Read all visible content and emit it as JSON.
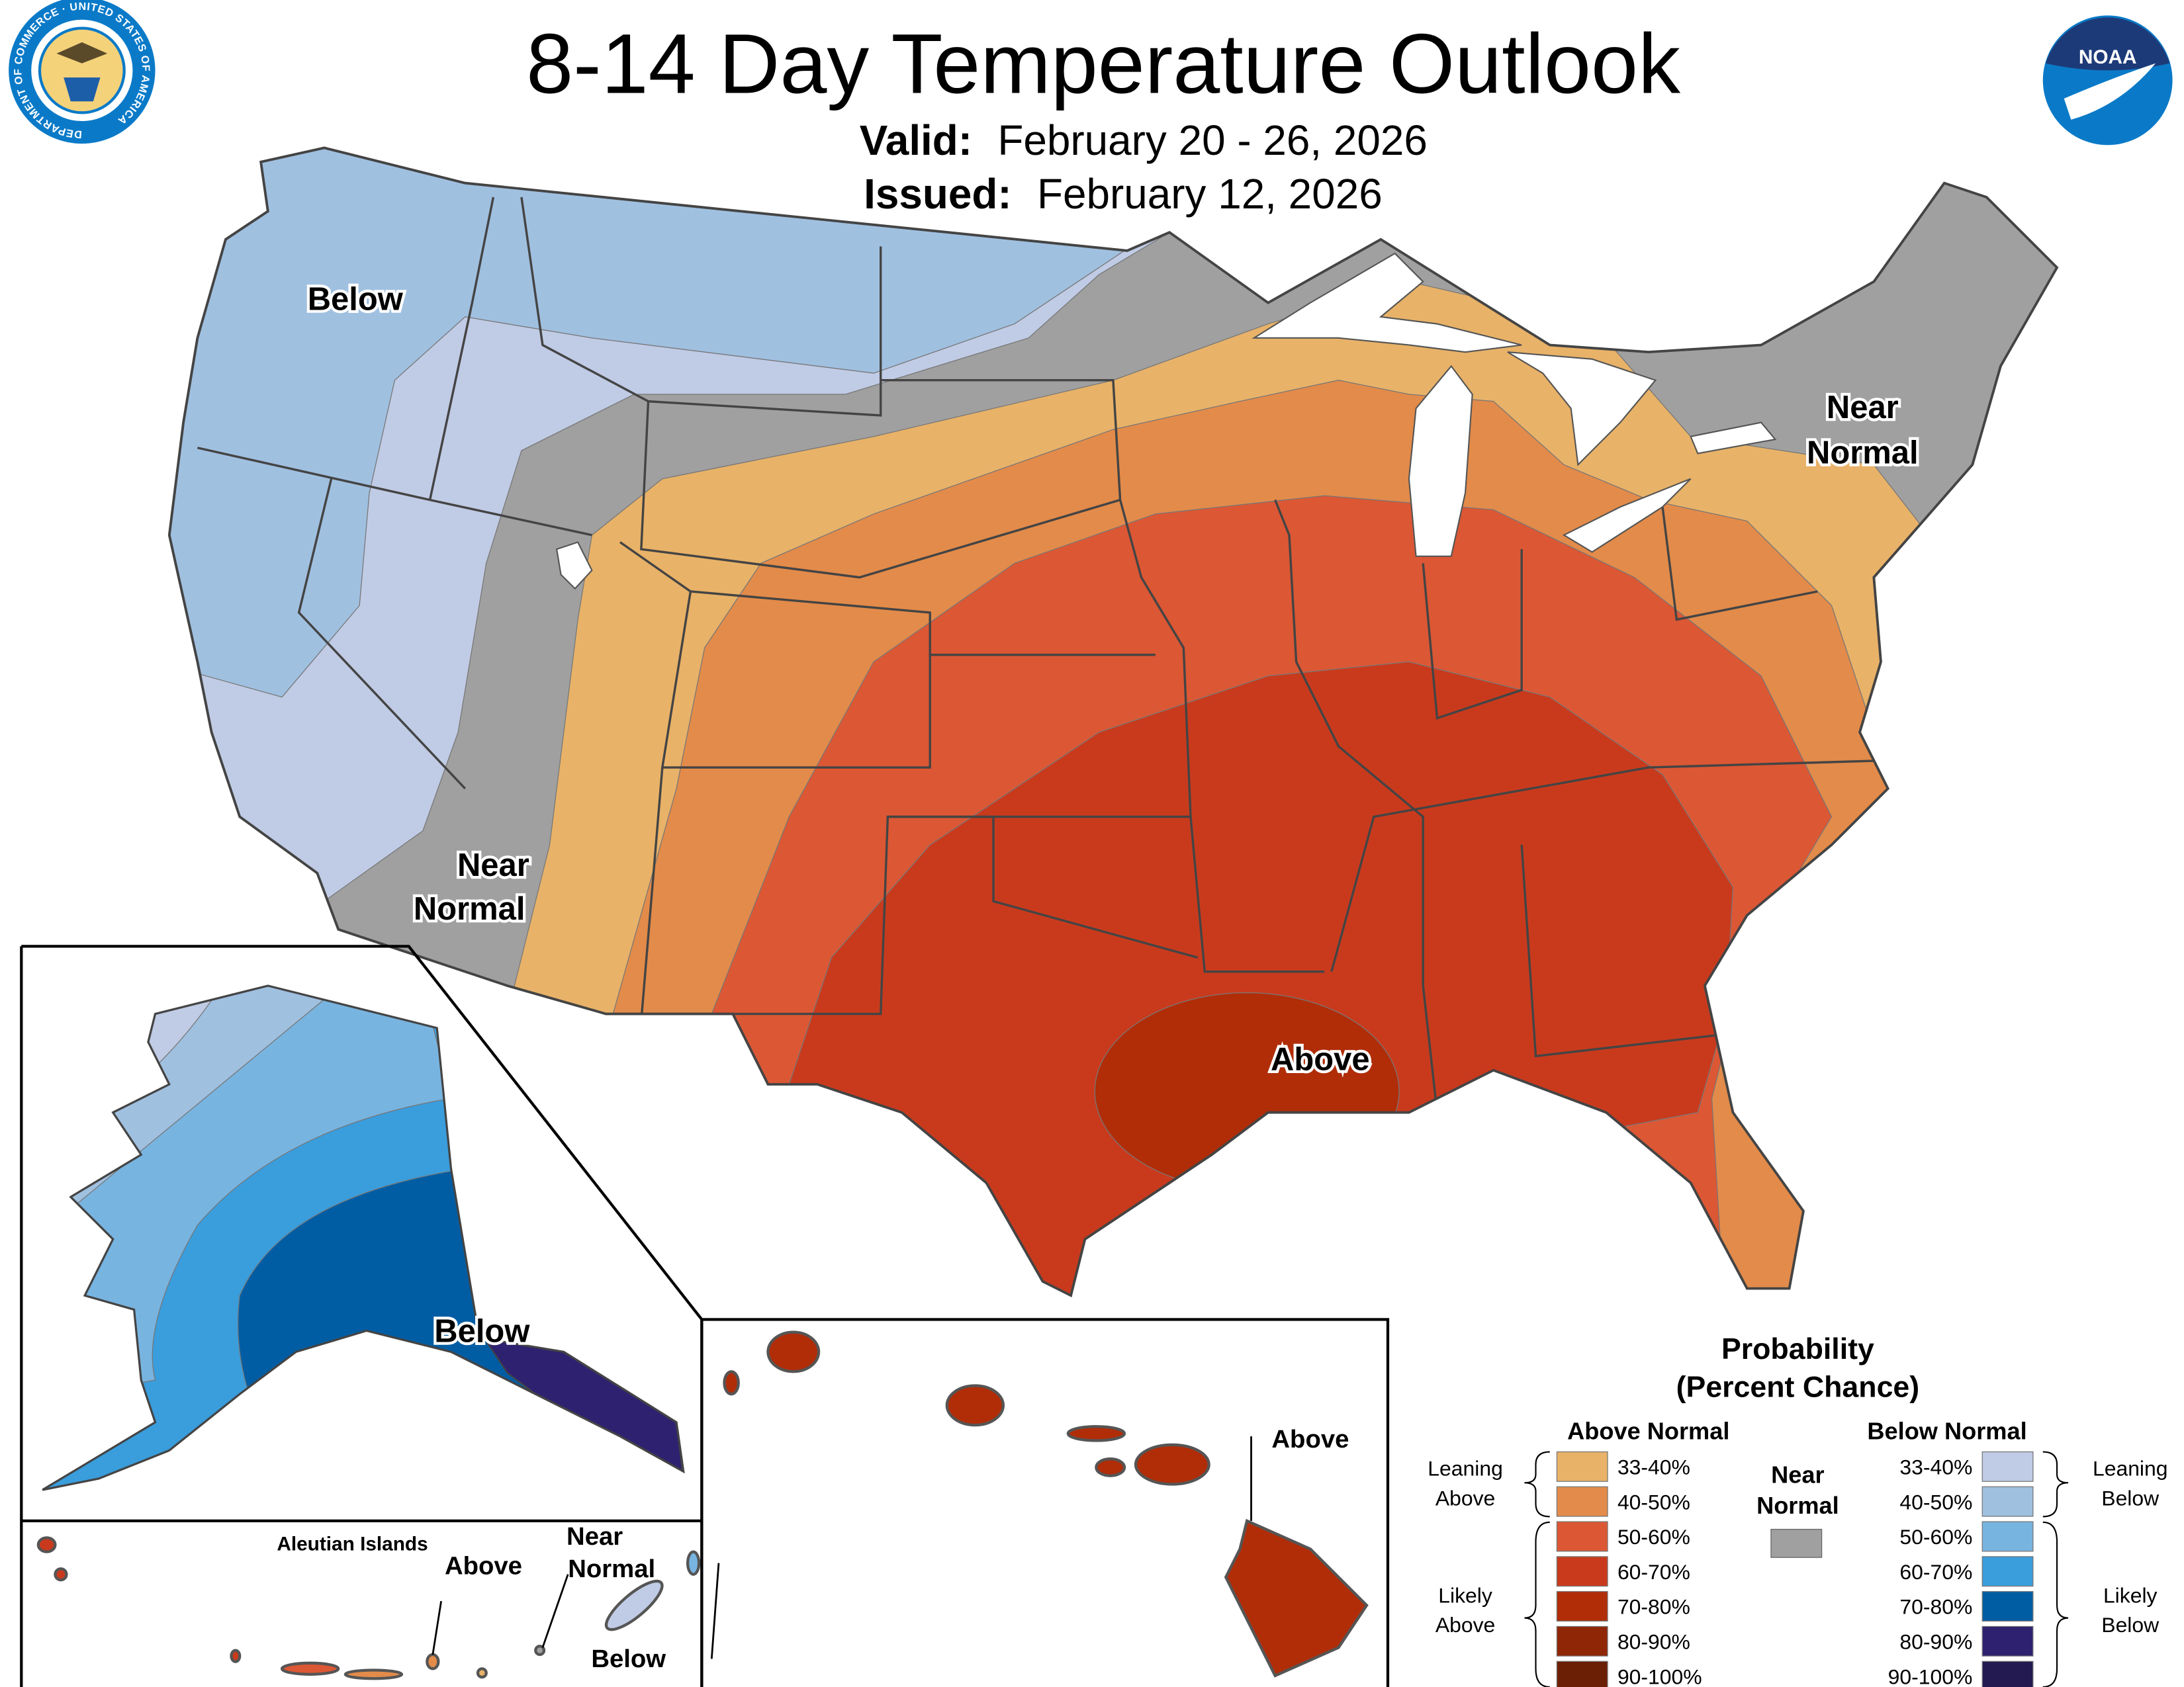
{
  "header": {
    "title": "8-14 Day Temperature Outlook",
    "valid_label": "Valid:",
    "valid_value": "February 20 - 26, 2026",
    "issued_label": "Issued:",
    "issued_value": "February 12, 2026",
    "left_logo": "department-of-commerce-seal",
    "left_logo_text": "DEPARTMENT OF COMMERCE · UNITED STATES OF AMERICA",
    "right_logo": "noaa-logo",
    "right_logo_text": "NOAA"
  },
  "map_labels": {
    "conus_below": "Below",
    "conus_near_west_1": "Near",
    "conus_near_west_2": "Normal",
    "conus_near_ne_1": "Near",
    "conus_near_ne_2": "Normal",
    "conus_above": "Above",
    "alaska_below": "Below",
    "hawaii_above": "Above",
    "aleutian_title": "Aleutian Islands",
    "aleutian_above": "Above",
    "aleutian_near_1": "Near",
    "aleutian_near_2": "Normal",
    "aleutian_below": "Below"
  },
  "legend": {
    "title_1": "Probability",
    "title_2": "(Percent Chance)",
    "above_header": "Above Normal",
    "below_header": "Below Normal",
    "near_1": "Near",
    "near_2": "Normal",
    "near_color": "#a0a0a0",
    "leaning_above_1": "Leaning",
    "leaning_above_2": "Above",
    "likely_above_1": "Likely",
    "likely_above_2": "Above",
    "leaning_below_1": "Leaning",
    "leaning_below_2": "Below",
    "likely_below_1": "Likely",
    "likely_below_2": "Below",
    "above": [
      {
        "range": "33-40%",
        "color": "#e8b268"
      },
      {
        "range": "40-50%",
        "color": "#e38b4a"
      },
      {
        "range": "50-60%",
        "color": "#dc5734"
      },
      {
        "range": "60-70%",
        "color": "#c93a1d"
      },
      {
        "range": "70-80%",
        "color": "#b02d08"
      },
      {
        "range": "80-90%",
        "color": "#8f2605"
      },
      {
        "range": "90-100%",
        "color": "#6b1f04"
      }
    ],
    "below": [
      {
        "range": "33-40%",
        "color": "#c0cbe5"
      },
      {
        "range": "40-50%",
        "color": "#a0c0e0"
      },
      {
        "range": "50-60%",
        "color": "#78b4e0"
      },
      {
        "range": "60-70%",
        "color": "#3a9ddc"
      },
      {
        "range": "70-80%",
        "color": "#005da3"
      },
      {
        "range": "80-90%",
        "color": "#2e2270"
      },
      {
        "range": "90-100%",
        "color": "#221a50"
      }
    ]
  }
}
